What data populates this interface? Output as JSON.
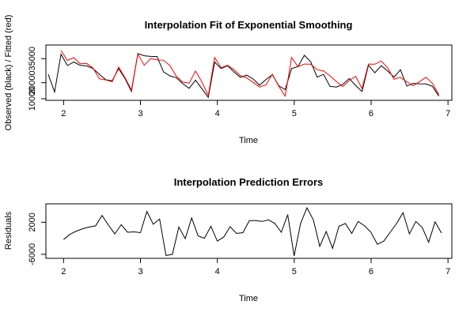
{
  "chart_data": [
    {
      "type": "line",
      "title": "Interpolation Fit of Exponential Smoothing",
      "xlabel": "Time",
      "ylabel": "Observed (black) / Fitted (red)",
      "xlim": [
        1.77,
        7.05
      ],
      "ylim": [
        9000,
        43500
      ],
      "x_ticks": [
        2,
        3,
        4,
        5,
        6,
        7
      ],
      "x_tick_labels": [
        "2",
        "3",
        "4",
        "5",
        "6",
        "7"
      ],
      "y_ticks": [
        10000,
        20000,
        35000
      ],
      "y_tick_labels": [
        "10000",
        "20000",
        "35000"
      ],
      "x_start": 1.8,
      "x_step": 0.0833,
      "series": [
        {
          "color": "#000000",
          "values": [
            25200,
            14200,
            37800,
            30700,
            32900,
            30800,
            30500,
            28800,
            25100,
            21800,
            21200,
            28800,
            22600,
            14500,
            38200,
            36800,
            36400,
            36300,
            26800,
            24300,
            23100,
            19400,
            16500,
            21600,
            16200,
            10800,
            32800,
            28800,
            30600,
            26800,
            23400,
            24700,
            22300,
            18400,
            22000,
            25000,
            18100,
            15700,
            28800,
            30100,
            37100,
            33000,
            23500,
            25200,
            17700,
            17300,
            19000,
            22600,
            18300,
            14500,
            30900,
            26200,
            30600,
            27300,
            23500,
            28100,
            17900,
            19600,
            19300,
            19200,
            17700,
            11600
          ]
        },
        {
          "color": "#ff0000",
          "values": [
            null,
            null,
            40100,
            33900,
            35600,
            31800,
            32000,
            29100,
            22400,
            21700,
            20600,
            29700,
            23200,
            15400,
            37900,
            30900,
            35000,
            34300,
            34000,
            30700,
            24100,
            20400,
            19700,
            27300,
            20400,
            12000,
            35700,
            29300,
            30900,
            28200,
            24500,
            23000,
            20200,
            17300,
            18600,
            25300,
            17700,
            11600,
            35700,
            30000,
            31600,
            31500,
            28100,
            27300,
            24300,
            20700,
            17600,
            21300,
            24000,
            16400,
            31600,
            31500,
            33500,
            29300,
            22100,
            23400,
            20600,
            18100,
            20700,
            23400,
            19600,
            12500
          ]
        }
      ]
    },
    {
      "type": "line",
      "title": "Interpolation Prediction Errors",
      "xlabel": "Time",
      "ylabel": "Residuals",
      "xlim": [
        1.77,
        7.05
      ],
      "ylim": [
        -7000,
        6600
      ],
      "x_ticks": [
        2,
        3,
        4,
        5,
        6,
        7
      ],
      "x_tick_labels": [
        "2",
        "3",
        "4",
        "5",
        "6",
        "7"
      ],
      "y_ticks": [
        -6000,
        2000
      ],
      "y_tick_labels": [
        "-6000",
        "2000"
      ],
      "x_start": 2.0,
      "x_step": 0.0833,
      "series": [
        {
          "color": "#000000",
          "values": [
            -2300,
            -1000,
            -200,
            400,
            800,
            1100,
            3700,
            1300,
            -900,
            1400,
            -500,
            -400,
            -600,
            4700,
            1500,
            2800,
            -6300,
            -6000,
            800,
            -2100,
            3100,
            -1400,
            -2000,
            1000,
            -2700,
            -1700,
            900,
            -800,
            -600,
            2400,
            2400,
            2200,
            2600,
            1700,
            -500,
            3900,
            -6400,
            1700,
            5600,
            2600,
            -4000,
            -300,
            -4500,
            1000,
            1700,
            -800,
            2200,
            1100,
            -500,
            -3500,
            -2700,
            -500,
            1700,
            4400,
            -900,
            2200,
            700,
            -3000,
            2100,
            -700
          ]
        }
      ]
    }
  ]
}
